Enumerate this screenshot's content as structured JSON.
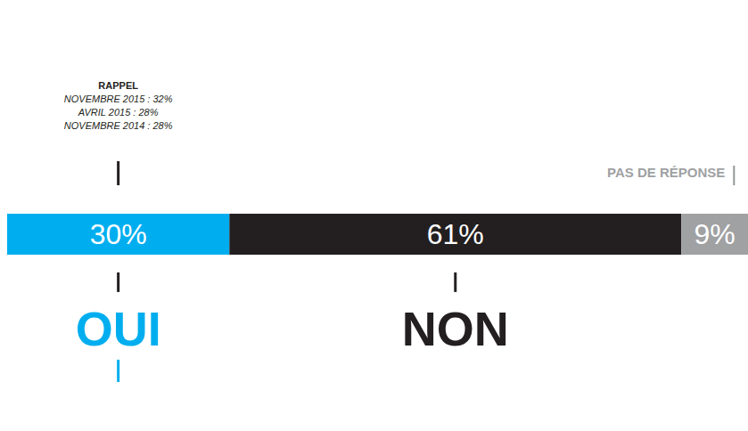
{
  "chart_data": {
    "type": "bar",
    "orientation": "horizontal",
    "stacked": true,
    "data_labels": true,
    "tick_labels": false,
    "grid": false,
    "xlim": [
      0,
      100
    ],
    "series": [
      {
        "name": "OUI",
        "color": "#00aeef",
        "values": [
          30
        ],
        "value_labels": [
          "30%"
        ],
        "annotation": {
          "title": "RAPPEL",
          "lines": [
            "NOVEMBRE 2015 : 32%",
            "AVRIL 2015 : 28%",
            "NOVEMBRE 2014 : 28%"
          ]
        }
      },
      {
        "name": "NON",
        "color": "#231f20",
        "values": [
          61
        ],
        "value_labels": [
          "61%"
        ]
      },
      {
        "name": "PAS DE RÉPONSE",
        "color": "#a0a1a3",
        "values": [
          9
        ],
        "value_labels": [
          "9%"
        ]
      }
    ]
  }
}
